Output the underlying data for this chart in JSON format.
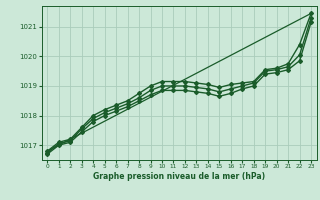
{
  "bg_color": "#cce8d8",
  "grid_color": "#aaccbb",
  "line_color": "#1a5c2a",
  "xlabel": "Graphe pression niveau de la mer (hPa)",
  "ylim": [
    1016.5,
    1021.7
  ],
  "xlim": [
    -0.5,
    23.5
  ],
  "yticks": [
    1017,
    1018,
    1019,
    1020,
    1021
  ],
  "xticks": [
    0,
    1,
    2,
    3,
    4,
    5,
    6,
    7,
    8,
    9,
    10,
    11,
    12,
    13,
    14,
    15,
    16,
    17,
    18,
    19,
    20,
    21,
    22,
    23
  ],
  "series": [
    {
      "x": [
        0,
        1,
        2,
        3,
        4,
        5,
        6,
        7,
        8,
        9,
        10,
        11,
        12,
        13,
        14,
        15,
        16,
        17,
        18,
        19,
        20,
        21,
        22,
        23
      ],
      "y": [
        1016.8,
        1017.1,
        1017.2,
        1017.6,
        1018.0,
        1018.2,
        1018.35,
        1018.5,
        1018.75,
        1019.0,
        1019.15,
        1019.15,
        1019.15,
        1019.1,
        1019.05,
        1018.95,
        1019.05,
        1019.1,
        1019.15,
        1019.55,
        1019.6,
        1019.75,
        1020.4,
        1021.45
      ],
      "marker": "D",
      "markersize": 2.0,
      "linewidth": 1.0,
      "dashed": false
    },
    {
      "x": [
        0,
        1,
        2,
        3,
        4,
        5,
        6,
        7,
        8,
        9,
        10,
        11,
        12,
        13,
        14,
        15,
        16,
        17,
        18,
        19,
        20,
        21,
        22,
        23
      ],
      "y": [
        1016.75,
        1017.05,
        1017.15,
        1017.55,
        1017.9,
        1018.1,
        1018.25,
        1018.4,
        1018.6,
        1018.85,
        1019.0,
        1019.0,
        1019.0,
        1018.95,
        1018.9,
        1018.8,
        1018.9,
        1019.0,
        1019.1,
        1019.5,
        1019.55,
        1019.65,
        1020.05,
        1021.3
      ],
      "marker": "D",
      "markersize": 2.0,
      "linewidth": 1.0,
      "dashed": false
    },
    {
      "x": [
        0,
        1,
        2,
        3,
        4,
        5,
        6,
        7,
        8,
        9,
        10,
        11,
        12,
        13,
        14,
        15,
        16,
        17,
        18,
        19,
        20,
        21,
        22,
        23
      ],
      "y": [
        1016.7,
        1017.0,
        1017.1,
        1017.45,
        1017.8,
        1018.0,
        1018.15,
        1018.3,
        1018.5,
        1018.7,
        1018.85,
        1018.85,
        1018.85,
        1018.8,
        1018.75,
        1018.65,
        1018.75,
        1018.9,
        1019.0,
        1019.4,
        1019.45,
        1019.55,
        1019.85,
        1021.15
      ],
      "marker": "D",
      "markersize": 2.0,
      "linewidth": 1.0,
      "dashed": false
    },
    {
      "x": [
        0,
        23
      ],
      "y": [
        1016.8,
        1021.45
      ],
      "marker": null,
      "markersize": 0,
      "linewidth": 0.9,
      "dashed": false
    }
  ]
}
